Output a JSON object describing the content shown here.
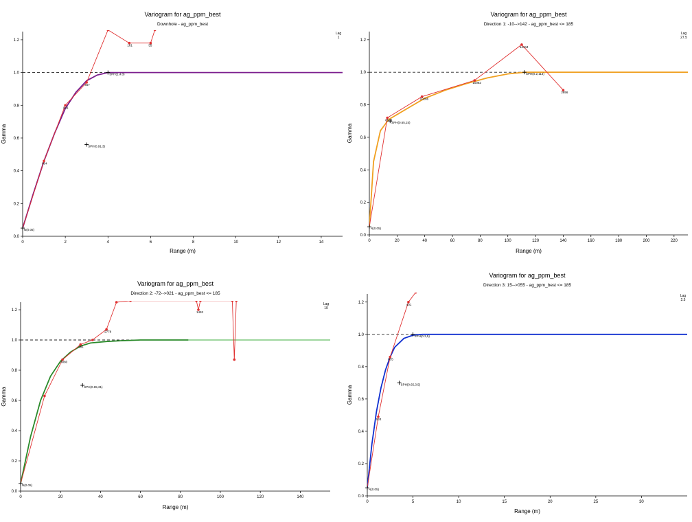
{
  "chart_data": [
    {
      "type": "line",
      "title": "Variogram for ag_ppm_best",
      "subtitle": "Downhole - ag_ppm_best",
      "xlabel": "Range (m)",
      "ylabel": "Gamma",
      "xlim": [
        0,
        15
      ],
      "ylim": [
        0,
        1.25
      ],
      "xticks": [
        0,
        2,
        4,
        6,
        8,
        10,
        12,
        14
      ],
      "yticks": [
        0.0,
        0.2,
        0.4,
        0.6,
        0.8,
        1.0,
        1.2
      ],
      "legend": {
        "title": "Lag",
        "value": "1"
      },
      "model_color": "#7b1f8e",
      "model_color_extended": "#7b1f8e",
      "model_extend_from": 15,
      "experimental_color": "#e03030",
      "sill": 1.0,
      "nugget": 0.05,
      "model_points": [
        [
          0,
          0.05
        ],
        [
          0.5,
          0.26
        ],
        [
          1,
          0.46
        ],
        [
          1.5,
          0.63
        ],
        [
          2,
          0.78
        ],
        [
          2.5,
          0.88
        ],
        [
          3,
          0.95
        ],
        [
          3.5,
          0.985
        ],
        [
          4,
          1.0
        ],
        [
          15,
          1.0
        ]
      ],
      "experimental": [
        {
          "x": 1,
          "y": 0.46,
          "label": "604"
        },
        {
          "x": 2,
          "y": 0.8,
          "label": "841"
        },
        {
          "x": 3,
          "y": 0.94,
          "label": "467"
        },
        {
          "x": 4,
          "y": 1.26,
          "label": ""
        },
        {
          "x": 5,
          "y": 1.18,
          "label": "181"
        },
        {
          "x": 6,
          "y": 1.18,
          "label": "55"
        },
        {
          "x": 6.2,
          "y": 1.26,
          "label": ""
        }
      ],
      "annotations": [
        {
          "x": 0,
          "y": 0.05,
          "text": "N(0.05)"
        },
        {
          "x": 4,
          "y": 1.0,
          "text": "SPH(1,4.0)"
        },
        {
          "x": 3,
          "y": 0.56,
          "text": "SPH(0.91,3)"
        }
      ]
    },
    {
      "type": "line",
      "title": "Variogram for ag_ppm_best",
      "subtitle": "Direction 1: -10-->142 - ag_ppm_best <= 185",
      "xlabel": "Range (m)",
      "ylabel": "Gamma",
      "xlim": [
        0,
        230
      ],
      "ylim": [
        0,
        1.25
      ],
      "xticks": [
        0,
        20,
        40,
        60,
        80,
        100,
        120,
        140,
        160,
        180,
        200,
        220
      ],
      "yticks": [
        0.0,
        0.2,
        0.4,
        0.6,
        0.8,
        1.0,
        1.2
      ],
      "legend": {
        "title": "Lag",
        "value": "27.5"
      },
      "model_color": "#f0a020",
      "model_color_extended": "#f0a020",
      "model_extend_from": 230,
      "experimental_color": "#e03030",
      "sill": 1.0,
      "nugget": 0.05,
      "model_points": [
        [
          0,
          0.05
        ],
        [
          3,
          0.45
        ],
        [
          8,
          0.64
        ],
        [
          14,
          0.71
        ],
        [
          20,
          0.74
        ],
        [
          30,
          0.79
        ],
        [
          40,
          0.84
        ],
        [
          55,
          0.89
        ],
        [
          70,
          0.93
        ],
        [
          85,
          0.965
        ],
        [
          100,
          0.99
        ],
        [
          112,
          1.0
        ],
        [
          230,
          1.0
        ]
      ],
      "experimental": [
        {
          "x": 13,
          "y": 0.72,
          "label": "6548"
        },
        {
          "x": 38,
          "y": 0.85,
          "label": "10286"
        },
        {
          "x": 76,
          "y": 0.95,
          "label": "10082"
        },
        {
          "x": 110,
          "y": 1.17,
          "label": "14444"
        },
        {
          "x": 140,
          "y": 0.89,
          "label": "2856"
        }
      ],
      "annotations": [
        {
          "x": 0,
          "y": 0.05,
          "text": "N(0.05)"
        },
        {
          "x": 112,
          "y": 1.0,
          "text": "SPH(0.2,113)"
        },
        {
          "x": 15,
          "y": 0.7,
          "text": "SPH(0.65,15)"
        }
      ]
    },
    {
      "type": "line",
      "title": "Variogram for ag_ppm_best",
      "subtitle": "Direction 2: -72-->021 - ag_ppm_best <= 185",
      "xlabel": "Range (m)",
      "ylabel": "Gamma",
      "xlim": [
        0,
        155
      ],
      "ylim": [
        0,
        1.25
      ],
      "xticks": [
        0,
        20,
        40,
        60,
        80,
        100,
        120,
        140
      ],
      "yticks": [
        0.0,
        0.2,
        0.4,
        0.6,
        0.8,
        1.0,
        1.2
      ],
      "legend": {
        "title": "Lag",
        "value": "10"
      },
      "model_color": "#2a8a2a",
      "model_color_extended": "#7ec87e",
      "model_extend_from": 84,
      "experimental_color": "#e03030",
      "sill": 1.0,
      "nugget": 0.05,
      "model_points": [
        [
          0,
          0.05
        ],
        [
          5,
          0.36
        ],
        [
          10,
          0.6
        ],
        [
          15,
          0.76
        ],
        [
          20,
          0.86
        ],
        [
          25,
          0.92
        ],
        [
          30,
          0.96
        ],
        [
          35,
          0.98
        ],
        [
          43,
          0.99
        ],
        [
          50,
          0.995
        ],
        [
          60,
          1.0
        ],
        [
          84,
          1.0
        ],
        [
          155,
          1.0
        ]
      ],
      "experimental": [
        {
          "x": 12,
          "y": 0.63,
          "label": ""
        },
        {
          "x": 21,
          "y": 0.87,
          "label": "3080"
        },
        {
          "x": 30,
          "y": 0.97,
          "label": "281"
        },
        {
          "x": 36,
          "y": 1.0,
          "label": ""
        },
        {
          "x": 43,
          "y": 1.07,
          "label": "2778"
        },
        {
          "x": 48,
          "y": 1.25,
          "label": ""
        },
        {
          "x": 55,
          "y": 1.26,
          "label": ""
        },
        {
          "x": 88,
          "y": 1.26,
          "label": ""
        },
        {
          "x": 89,
          "y": 1.2,
          "label": "1493"
        },
        {
          "x": 90,
          "y": 1.26,
          "label": ""
        },
        {
          "x": 106,
          "y": 1.26,
          "label": ""
        },
        {
          "x": 107,
          "y": 0.87,
          "label": ""
        },
        {
          "x": 108,
          "y": 1.26,
          "label": ""
        }
      ],
      "annotations": [
        {
          "x": 0,
          "y": 0.05,
          "text": "N(0.05)"
        },
        {
          "x": 31,
          "y": 0.7,
          "text": "SPH(0.65,31)"
        }
      ]
    },
    {
      "type": "line",
      "title": "Variogram for ag_ppm_best",
      "subtitle": "Direction 3: 15-->055 - ag_ppm_best <= 185",
      "xlabel": "Range (m)",
      "ylabel": "Gamma",
      "xlim": [
        0,
        35
      ],
      "ylim": [
        0,
        1.25
      ],
      "xticks": [
        0,
        5,
        10,
        15,
        20,
        25,
        30
      ],
      "yticks": [
        0.0,
        0.2,
        0.4,
        0.6,
        0.8,
        1.0,
        1.2
      ],
      "legend": {
        "title": "Lag",
        "value": "2.5"
      },
      "model_color": "#1030d0",
      "model_color_extended": "#1030d0",
      "model_extend_from": 35,
      "experimental_color": "#e03030",
      "sill": 1.0,
      "nugget": 0.05,
      "model_points": [
        [
          0,
          0.05
        ],
        [
          0.5,
          0.32
        ],
        [
          1,
          0.52
        ],
        [
          1.5,
          0.67
        ],
        [
          2,
          0.78
        ],
        [
          2.5,
          0.86
        ],
        [
          3,
          0.92
        ],
        [
          4,
          0.975
        ],
        [
          5,
          0.995
        ],
        [
          6,
          1.0
        ],
        [
          35,
          1.0
        ]
      ],
      "experimental": [
        {
          "x": 1.2,
          "y": 0.49,
          "label": "524"
        },
        {
          "x": 2.5,
          "y": 0.86,
          "label": "835"
        },
        {
          "x": 4.5,
          "y": 1.2,
          "label": "401"
        },
        {
          "x": 5.3,
          "y": 1.26,
          "label": ""
        }
      ],
      "annotations": [
        {
          "x": 0,
          "y": 0.05,
          "text": "N(0.05)"
        },
        {
          "x": 5,
          "y": 1.0,
          "text": "SPH(0.3,5)"
        },
        {
          "x": 3.5,
          "y": 0.7,
          "text": "SPH(0.65,3.5)"
        }
      ]
    }
  ]
}
